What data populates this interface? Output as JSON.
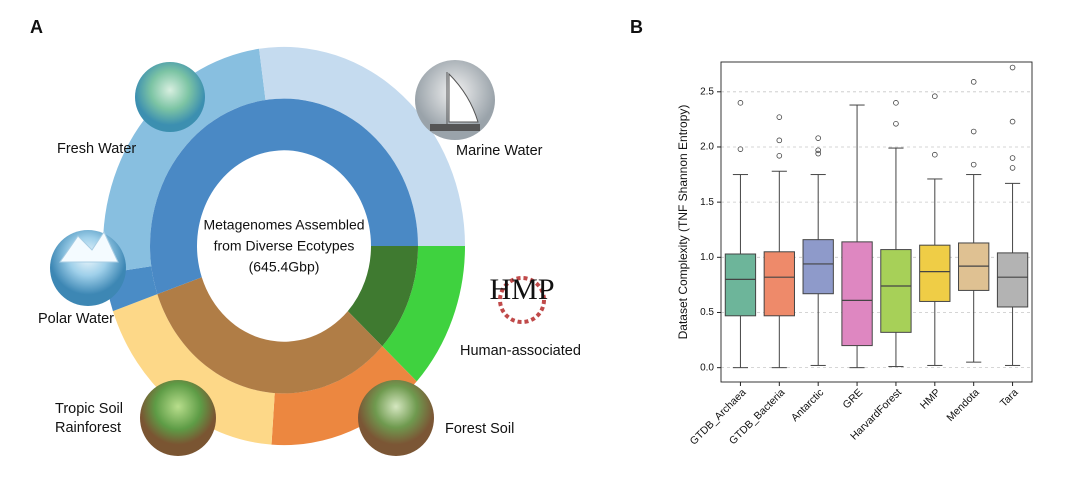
{
  "chart_data": [
    {
      "type": "donut",
      "panel": "A",
      "center_text": [
        "Metagenomes Assembled",
        "from Diverse Ecotypes",
        "(645.4Gbp)"
      ],
      "logo": "HMP",
      "categories": [
        "Human-associated",
        "Forest Soil",
        "Tropic Soil Rainforest",
        "Polar Water",
        "Fresh Water",
        "Marine Water"
      ],
      "values": [
        11.9,
        14.2,
        18.6,
        3.1,
        25.0,
        27.2
      ],
      "colors": [
        "#3fd23f",
        "#ec8740",
        "#fdd888",
        "#4a8cc6",
        "#88bfe0",
        "#c5dbef"
      ],
      "inner_values": [
        11.9,
        32.8,
        55.3
      ],
      "inner_colors": [
        "#3f7a30",
        "#b07d46",
        "#4a89c5"
      ]
    },
    {
      "type": "boxplot",
      "panel": "B",
      "ylabel": "Dataset Complexity (TNF Shannon Entropy)",
      "categories": [
        "GTDB_Archaea",
        "GTDB_Bacteria",
        "Antarctic",
        "GRE",
        "HarvardForest",
        "HMP",
        "Mendota",
        "Tara"
      ],
      "colors": [
        "#6db59a",
        "#ee8a6a",
        "#8e9aca",
        "#de87c1",
        "#a7d058",
        "#efcd46",
        "#dfc192",
        "#b3b3b3"
      ],
      "boxes": [
        {
          "whislo": 0.0,
          "q1": 0.47,
          "med": 0.8,
          "q3": 1.03,
          "whishi": 1.75,
          "fliers": [
            2.4,
            1.98
          ]
        },
        {
          "whislo": 0.0,
          "q1": 0.47,
          "med": 0.82,
          "q3": 1.05,
          "whishi": 1.78,
          "fliers": [
            2.27,
            2.06,
            1.92
          ]
        },
        {
          "whislo": 0.02,
          "q1": 0.67,
          "med": 0.94,
          "q3": 1.16,
          "whishi": 1.75,
          "fliers": [
            2.08,
            1.97,
            1.94
          ]
        },
        {
          "whislo": 0.0,
          "q1": 0.2,
          "med": 0.61,
          "q3": 1.14,
          "whishi": 2.38,
          "fliers": []
        },
        {
          "whislo": 0.01,
          "q1": 0.32,
          "med": 0.74,
          "q3": 1.07,
          "whishi": 1.99,
          "fliers": [
            2.4,
            2.21
          ]
        },
        {
          "whislo": 0.02,
          "q1": 0.6,
          "med": 0.87,
          "q3": 1.11,
          "whishi": 1.71,
          "fliers": [
            2.46,
            1.93
          ]
        },
        {
          "whislo": 0.05,
          "q1": 0.7,
          "med": 0.92,
          "q3": 1.13,
          "whishi": 1.75,
          "fliers": [
            2.59,
            2.14,
            1.84
          ]
        },
        {
          "whislo": 0.02,
          "q1": 0.55,
          "med": 0.82,
          "q3": 1.04,
          "whishi": 1.67,
          "fliers": [
            2.72,
            2.23,
            1.9,
            1.81
          ]
        }
      ],
      "ylim": [
        -0.13,
        2.77
      ],
      "yticks": [
        {
          "value": 0,
          "label": "0.0"
        },
        0.5,
        {
          "value": 1,
          "label": "1.0"
        },
        1.5,
        {
          "value": 2,
          "label": "2.0"
        },
        2.5
      ],
      "grid": true
    }
  ]
}
